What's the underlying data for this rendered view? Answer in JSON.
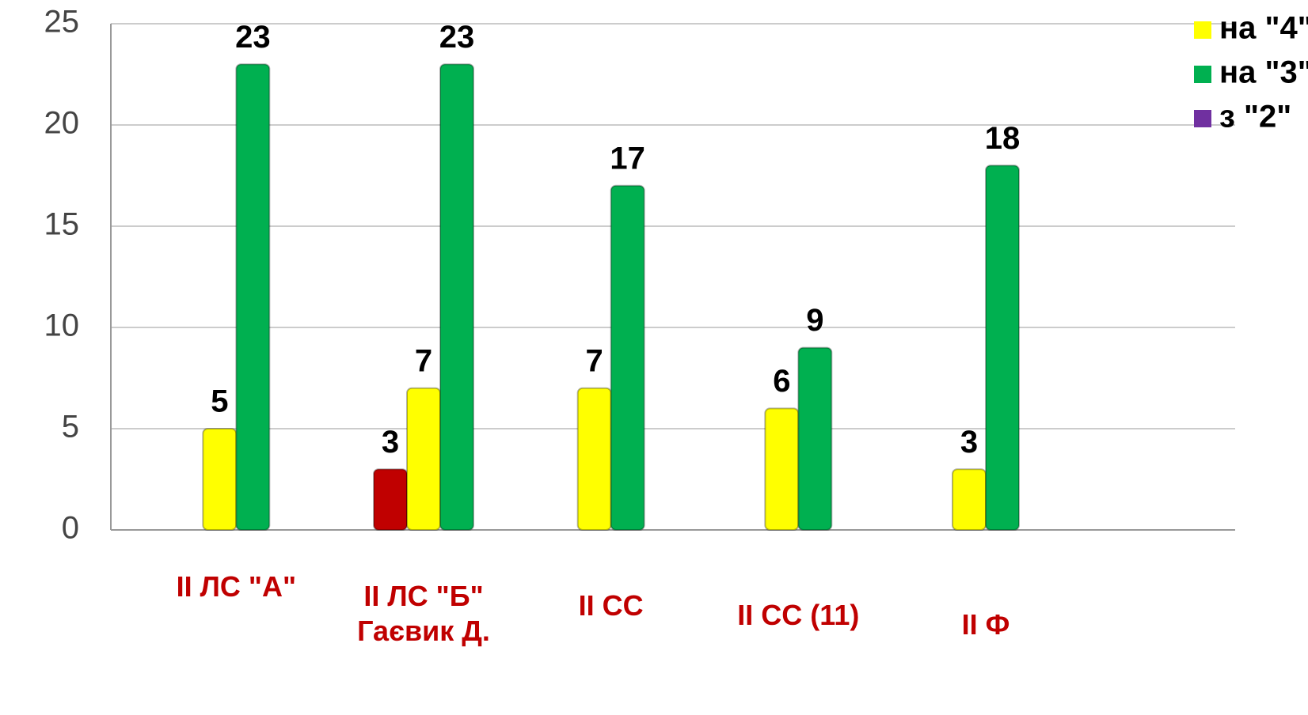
{
  "chart_data": {
    "type": "bar",
    "categories": [
      "II ЛС \"А\"",
      "II ЛС \"Б\" Гаєвик Д.",
      "II СС",
      "II СС (11)",
      "II Ф"
    ],
    "series": [
      {
        "name": "з \"2\"",
        "color": "#c00000",
        "legend_color": "#7030a0",
        "values": [
          null,
          3,
          null,
          null,
          null
        ]
      },
      {
        "name": "на \"4\"",
        "color": "#ffff00",
        "values": [
          5,
          7,
          7,
          6,
          3
        ]
      },
      {
        "name": "на \"3\"",
        "color": "#00b050",
        "values": [
          23,
          23,
          17,
          9,
          18
        ]
      }
    ],
    "legend_order": [
      1,
      2,
      0
    ],
    "ylim": [
      0,
      25
    ],
    "yticks": [
      0,
      5,
      10,
      15,
      20,
      25
    ],
    "grid": true,
    "legend": "top-right"
  }
}
